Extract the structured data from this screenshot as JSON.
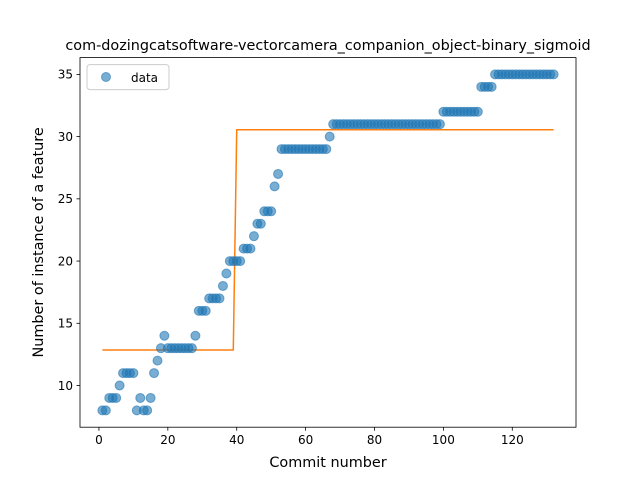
{
  "chart_data": {
    "type": "scatter",
    "title": "com-dozingcatsoftware-vectorcamera_companion_object-binary_sigmoid",
    "xlabel": "Commit number",
    "ylabel": "Number of instance of a feature",
    "xlim": [
      -5.5,
      138.5
    ],
    "ylim": [
      6.65,
      36.35
    ],
    "xticks": [
      0,
      20,
      40,
      60,
      80,
      100,
      120
    ],
    "yticks": [
      10,
      15,
      20,
      25,
      30,
      35
    ],
    "grid": false,
    "legend_position": "upper left",
    "series": [
      {
        "name": "data",
        "kind": "scatter",
        "color": "#1f77b4",
        "points": [
          [
            1,
            8
          ],
          [
            2,
            8
          ],
          [
            3,
            9
          ],
          [
            4,
            9
          ],
          [
            5,
            9
          ],
          [
            6,
            10
          ],
          [
            7,
            11
          ],
          [
            8,
            11
          ],
          [
            9,
            11
          ],
          [
            10,
            11
          ],
          [
            11,
            8
          ],
          [
            12,
            9
          ],
          [
            13,
            8
          ],
          [
            14,
            8
          ],
          [
            15,
            9
          ],
          [
            16,
            11
          ],
          [
            17,
            12
          ],
          [
            18,
            13
          ],
          [
            19,
            14
          ],
          [
            20,
            13
          ],
          [
            21,
            13
          ],
          [
            22,
            13
          ],
          [
            23,
            13
          ],
          [
            24,
            13
          ],
          [
            25,
            13
          ],
          [
            26,
            13
          ],
          [
            27,
            13
          ],
          [
            28,
            14
          ],
          [
            29,
            16
          ],
          [
            30,
            16
          ],
          [
            31,
            16
          ],
          [
            32,
            17
          ],
          [
            33,
            17
          ],
          [
            34,
            17
          ],
          [
            35,
            17
          ],
          [
            36,
            18
          ],
          [
            37,
            19
          ],
          [
            38,
            20
          ],
          [
            39,
            20
          ],
          [
            40,
            20
          ],
          [
            41,
            20
          ],
          [
            42,
            21
          ],
          [
            43,
            21
          ],
          [
            44,
            21
          ],
          [
            45,
            22
          ],
          [
            46,
            23
          ],
          [
            47,
            23
          ],
          [
            48,
            24
          ],
          [
            49,
            24
          ],
          [
            50,
            24
          ],
          [
            51,
            26
          ],
          [
            52,
            27
          ],
          [
            53,
            29
          ],
          [
            54,
            29
          ],
          [
            55,
            29
          ],
          [
            56,
            29
          ],
          [
            57,
            29
          ],
          [
            58,
            29
          ],
          [
            59,
            29
          ],
          [
            60,
            29
          ],
          [
            61,
            29
          ],
          [
            62,
            29
          ],
          [
            63,
            29
          ],
          [
            64,
            29
          ],
          [
            65,
            29
          ],
          [
            66,
            29
          ],
          [
            67,
            30
          ],
          [
            68,
            31
          ],
          [
            69,
            31
          ],
          [
            70,
            31
          ],
          [
            71,
            31
          ],
          [
            72,
            31
          ],
          [
            73,
            31
          ],
          [
            74,
            31
          ],
          [
            75,
            31
          ],
          [
            76,
            31
          ],
          [
            77,
            31
          ],
          [
            78,
            31
          ],
          [
            79,
            31
          ],
          [
            80,
            31
          ],
          [
            81,
            31
          ],
          [
            82,
            31
          ],
          [
            83,
            31
          ],
          [
            84,
            31
          ],
          [
            85,
            31
          ],
          [
            86,
            31
          ],
          [
            87,
            31
          ],
          [
            88,
            31
          ],
          [
            89,
            31
          ],
          [
            90,
            31
          ],
          [
            91,
            31
          ],
          [
            92,
            31
          ],
          [
            93,
            31
          ],
          [
            94,
            31
          ],
          [
            95,
            31
          ],
          [
            96,
            31
          ],
          [
            97,
            31
          ],
          [
            98,
            31
          ],
          [
            99,
            31
          ],
          [
            100,
            32
          ],
          [
            101,
            32
          ],
          [
            102,
            32
          ],
          [
            103,
            32
          ],
          [
            104,
            32
          ],
          [
            105,
            32
          ],
          [
            106,
            32
          ],
          [
            107,
            32
          ],
          [
            108,
            32
          ],
          [
            109,
            32
          ],
          [
            110,
            32
          ],
          [
            111,
            34
          ],
          [
            112,
            34
          ],
          [
            113,
            34
          ],
          [
            114,
            34
          ],
          [
            115,
            35
          ],
          [
            116,
            35
          ],
          [
            117,
            35
          ],
          [
            118,
            35
          ],
          [
            119,
            35
          ],
          [
            120,
            35
          ],
          [
            121,
            35
          ],
          [
            122,
            35
          ],
          [
            123,
            35
          ],
          [
            124,
            35
          ],
          [
            125,
            35
          ],
          [
            126,
            35
          ],
          [
            127,
            35
          ],
          [
            128,
            35
          ],
          [
            129,
            35
          ],
          [
            130,
            35
          ],
          [
            131,
            35
          ],
          [
            132,
            35
          ]
        ]
      },
      {
        "kind": "line",
        "color": "#ff7f0e",
        "points": [
          [
            1,
            12.85
          ],
          [
            39,
            12.85
          ],
          [
            40,
            30.55
          ],
          [
            132,
            30.55
          ]
        ]
      }
    ]
  }
}
